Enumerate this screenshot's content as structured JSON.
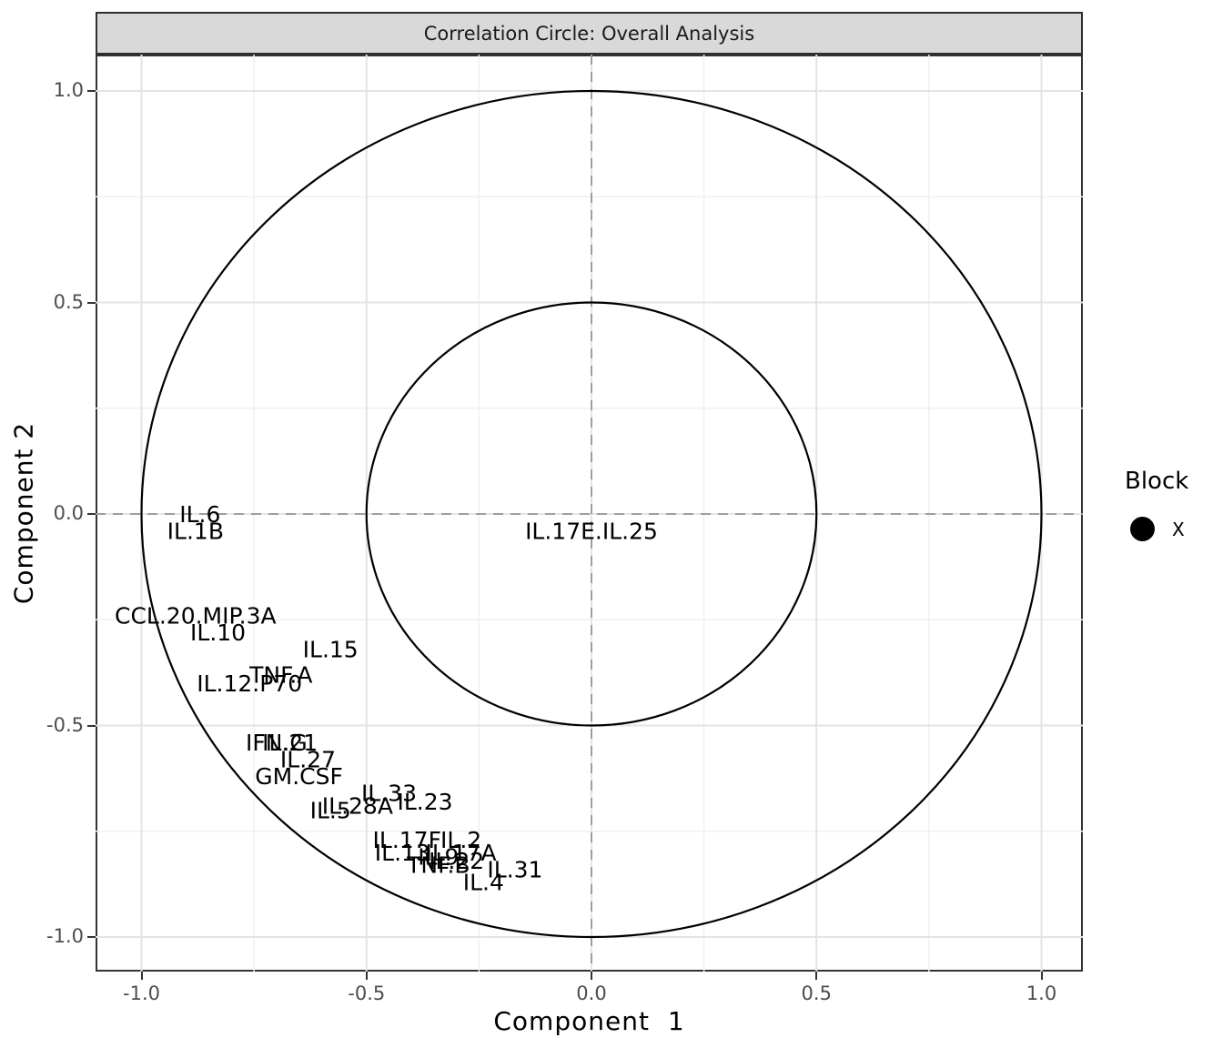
{
  "strip": {
    "title": "Correlation Circle: Overall Analysis"
  },
  "axes": {
    "x": {
      "title": "Component 1",
      "ticks": [
        "-1.0",
        "-0.5",
        "0.0",
        "0.5",
        "1.0"
      ],
      "tick_values": [
        -1.0,
        -0.5,
        0.0,
        0.5,
        1.0
      ]
    },
    "y": {
      "title": "Component 2",
      "ticks": [
        "1.0",
        "0.5",
        "0.0",
        "-0.5",
        "-1.0"
      ],
      "tick_values": [
        1.0,
        0.5,
        0.0,
        -0.5,
        -1.0
      ]
    }
  },
  "legend": {
    "title": "Block",
    "items": [
      {
        "label": "X",
        "marker": "filled-circle",
        "color": "#000000"
      }
    ]
  },
  "colors": {
    "strip_fill": "#d9d9d9",
    "panel_border": "#333333",
    "grid_major": "#e4e4e4",
    "grid_minor": "#f0f0f0",
    "reference_dashed": "#9e9e9e",
    "circle_stroke": "#000000",
    "tick_text": "#4d4d4d",
    "label_text": "#000000"
  },
  "chart_data": {
    "type": "scatter",
    "title": "Correlation Circle: Overall Analysis",
    "xlabel": "Component 1",
    "ylabel": "Component 2",
    "xlim": [
      -1.1,
      1.1
    ],
    "ylim": [
      -1.1,
      1.1
    ],
    "grid": {
      "major": [
        -1.0,
        -0.5,
        0.0,
        0.5,
        1.0
      ],
      "minor": [
        -0.75,
        -0.25,
        0.25,
        0.75
      ]
    },
    "reference_lines": {
      "vline_x": 0,
      "hline_y": 0,
      "style": "dashed"
    },
    "circle_radii": [
      1.0,
      0.5
    ],
    "legend": {
      "title": "Block",
      "label": "X",
      "position": "right"
    },
    "point_style": "text-label",
    "points": [
      {
        "label": "IL.6",
        "x": -0.87,
        "y": 0.0
      },
      {
        "label": "IL.1B",
        "x": -0.88,
        "y": -0.04
      },
      {
        "label": "IL.17E.IL.25",
        "x": 0.0,
        "y": -0.04
      },
      {
        "label": "CCL.20.MIP.3A",
        "x": -0.88,
        "y": -0.24
      },
      {
        "label": "IL.10",
        "x": -0.83,
        "y": -0.28
      },
      {
        "label": "IL.15",
        "x": -0.58,
        "y": -0.32
      },
      {
        "label": "TNF.A",
        "x": -0.69,
        "y": -0.38
      },
      {
        "label": "IL.12.P70",
        "x": -0.76,
        "y": -0.4
      },
      {
        "label": "IFN.G",
        "x": -0.7,
        "y": -0.54
      },
      {
        "label": "IL.21",
        "x": -0.67,
        "y": -0.54
      },
      {
        "label": "IL.27",
        "x": -0.63,
        "y": -0.58
      },
      {
        "label": "GM.CSF",
        "x": -0.65,
        "y": -0.62
      },
      {
        "label": "IL.33",
        "x": -0.45,
        "y": -0.66
      },
      {
        "label": "IL.23",
        "x": -0.37,
        "y": -0.68
      },
      {
        "label": "IL.28A",
        "x": -0.52,
        "y": -0.69
      },
      {
        "label": "IL.5",
        "x": -0.58,
        "y": -0.7
      },
      {
        "label": "IL.17F",
        "x": -0.41,
        "y": -0.77
      },
      {
        "label": "IL.2",
        "x": -0.29,
        "y": -0.77
      },
      {
        "label": "IL.13",
        "x": -0.42,
        "y": -0.8
      },
      {
        "label": "IL.17A",
        "x": -0.29,
        "y": -0.8
      },
      {
        "label": "IL.9",
        "x": -0.34,
        "y": -0.81
      },
      {
        "label": "IL.22",
        "x": -0.3,
        "y": -0.82
      },
      {
        "label": "TNF.B",
        "x": -0.34,
        "y": -0.83
      },
      {
        "label": "IL.31",
        "x": -0.17,
        "y": -0.84
      },
      {
        "label": "IL.4",
        "x": -0.24,
        "y": -0.87
      }
    ]
  }
}
